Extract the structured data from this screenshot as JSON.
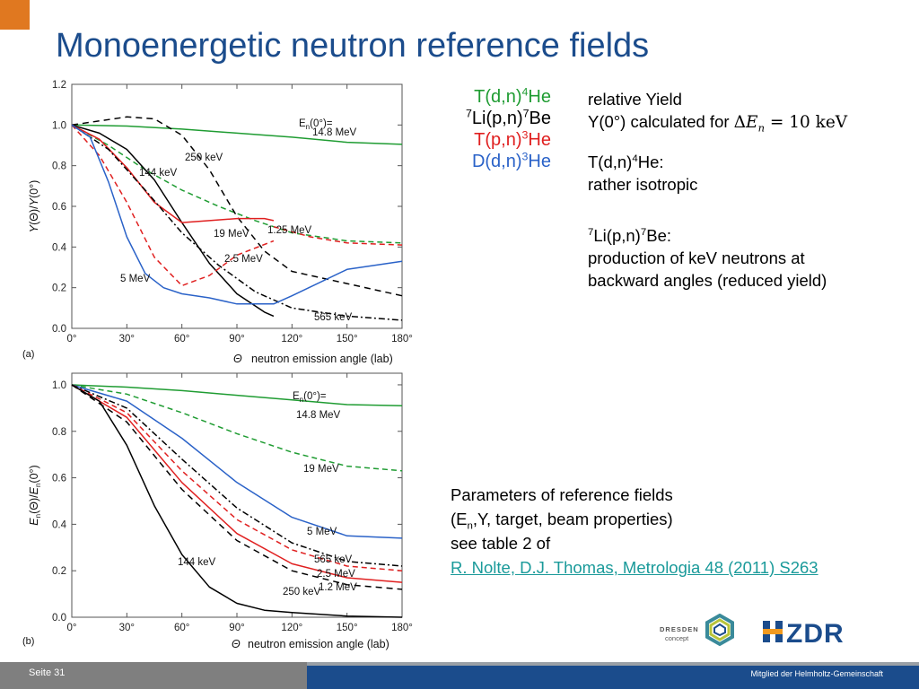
{
  "slide": {
    "title": "Monoenergetic neutron reference fields",
    "page": "Seite 31",
    "footer_right": "Mitglied der Helmholtz-Gemeinschaft"
  },
  "reactions": [
    {
      "label": "T(d,n)⁴He",
      "color": "#1f9c32"
    },
    {
      "label": "⁷Li(p,n)⁷Be",
      "color": "#000000"
    },
    {
      "label": "T(p,n)³He",
      "color": "#e02020"
    },
    {
      "label": "D(d,n)³He",
      "color": "#2a62c8"
    }
  ],
  "info": {
    "yield_line1": "relative Yield",
    "yield_line2": "Y(0°) calculated for",
    "yield_formula": "ΔEn = 10 keV",
    "tdn_title": "T(d,n)⁴He:",
    "tdn_text": "rather isotropic",
    "li_title": "⁷Li(p,n)⁷Be:",
    "li_text1": "production of  keV neutrons  at",
    "li_text2": "backward angles (reduced yield)"
  },
  "params": {
    "line1": "Parameters of reference fields",
    "line2": "(En,Y, target, beam properties)",
    "line3": "see table 2 of",
    "link": "R. Nolte, D.J. Thomas, Metrologia 48 (2011) S263"
  },
  "logos": {
    "dresden_line1": "DRESDEN",
    "dresden_line2": "concept",
    "hzdr": "HZDR"
  },
  "chart_data": [
    {
      "type": "line",
      "panel": "(a)",
      "xlabel": "Θ  neutron emission angle (lab)",
      "ylabel": "Y(Θ)/Y(0°)",
      "x_ticks": [
        "0°",
        "30°",
        "60°",
        "90°",
        "120°",
        "150°",
        "180°"
      ],
      "y_ticks": [
        "0.0",
        "0.2",
        "0.4",
        "0.6",
        "0.8",
        "1.0",
        "1.2"
      ],
      "xlim": [
        0,
        180
      ],
      "ylim": [
        0,
        1.2
      ],
      "annotation": "En(0°)=",
      "series": [
        {
          "name": "14.8 MeV",
          "color": "#1f9c32",
          "dash": "",
          "x": [
            0,
            30,
            60,
            90,
            120,
            150,
            180
          ],
          "y": [
            1.0,
            0.995,
            0.98,
            0.96,
            0.94,
            0.915,
            0.905
          ]
        },
        {
          "name": "19 MeV",
          "color": "#1f9c32",
          "dash": "6,4",
          "x": [
            0,
            20,
            40,
            60,
            80,
            100,
            120,
            150,
            180
          ],
          "y": [
            1.0,
            0.9,
            0.78,
            0.68,
            0.6,
            0.53,
            0.47,
            0.43,
            0.42
          ]
        },
        {
          "name": "250 keV",
          "color": "#000000",
          "dash": "7,5",
          "x": [
            0,
            15,
            30,
            45,
            60,
            75,
            90,
            105,
            120,
            150,
            180
          ],
          "y": [
            1.0,
            1.02,
            1.04,
            1.03,
            0.95,
            0.78,
            0.55,
            0.38,
            0.28,
            0.22,
            0.16
          ]
        },
        {
          "name": "144 keV",
          "color": "#000000",
          "dash": "",
          "x": [
            0,
            15,
            30,
            45,
            60,
            75,
            90,
            105,
            110
          ],
          "y": [
            1.0,
            0.96,
            0.88,
            0.73,
            0.52,
            0.32,
            0.17,
            0.08,
            0.06
          ]
        },
        {
          "name": "1.25 MeV",
          "color": "#e02020",
          "dash": "",
          "x": [
            0,
            15,
            30,
            45,
            60,
            75,
            90,
            105,
            110
          ],
          "y": [
            1.0,
            0.93,
            0.79,
            0.62,
            0.52,
            0.53,
            0.54,
            0.54,
            0.53
          ]
        },
        {
          "name": "1.25 MeV dashed",
          "color": "#e02020",
          "dash": "6,4",
          "x": [
            110,
            130,
            150,
            180
          ],
          "y": [
            0.5,
            0.45,
            0.42,
            0.41
          ]
        },
        {
          "name": "2.5 MeV",
          "color": "#e02020",
          "dash": "6,4",
          "x": [
            0,
            15,
            30,
            45,
            60,
            75,
            90,
            110
          ],
          "y": [
            1.0,
            0.85,
            0.62,
            0.35,
            0.21,
            0.26,
            0.36,
            0.43
          ]
        },
        {
          "name": "565 keV",
          "color": "#000000",
          "dash": "7,3,2,3",
          "x": [
            0,
            20,
            40,
            60,
            80,
            100,
            120,
            150,
            180
          ],
          "y": [
            1.0,
            0.88,
            0.68,
            0.47,
            0.31,
            0.18,
            0.1,
            0.06,
            0.04
          ]
        },
        {
          "name": "5 MeV",
          "color": "#2a62c8",
          "dash": "",
          "x": [
            0,
            10,
            20,
            30,
            40,
            50,
            60,
            75,
            90,
            110,
            120,
            150,
            180
          ],
          "y": [
            1.0,
            0.94,
            0.72,
            0.45,
            0.27,
            0.2,
            0.17,
            0.15,
            0.12,
            0.12,
            0.16,
            0.29,
            0.33
          ]
        }
      ]
    },
    {
      "type": "line",
      "panel": "(b)",
      "xlabel": "Θ  neutron emission angle (lab)",
      "ylabel": "En(Θ)/En(0°)",
      "x_ticks": [
        "0°",
        "30°",
        "60°",
        "90°",
        "120°",
        "150°",
        "180°"
      ],
      "y_ticks": [
        "0.0",
        "0.2",
        "0.4",
        "0.6",
        "0.8",
        "1.0"
      ],
      "xlim": [
        0,
        180
      ],
      "ylim": [
        0,
        1.05
      ],
      "annotation": "En(0°)=",
      "series": [
        {
          "name": "14.8 MeV",
          "color": "#1f9c32",
          "dash": "",
          "x": [
            0,
            30,
            60,
            90,
            120,
            150,
            180
          ],
          "y": [
            1.0,
            0.99,
            0.975,
            0.955,
            0.935,
            0.915,
            0.91
          ]
        },
        {
          "name": "19 MeV",
          "color": "#1f9c32",
          "dash": "6,4",
          "x": [
            0,
            30,
            60,
            90,
            120,
            150,
            180
          ],
          "y": [
            1.0,
            0.96,
            0.88,
            0.79,
            0.71,
            0.65,
            0.63
          ]
        },
        {
          "name": "5 MeV",
          "color": "#2a62c8",
          "dash": "",
          "x": [
            0,
            30,
            60,
            90,
            120,
            150,
            180
          ],
          "y": [
            1.0,
            0.93,
            0.77,
            0.58,
            0.43,
            0.35,
            0.34
          ]
        },
        {
          "name": "565 keV",
          "color": "#000000",
          "dash": "7,3,2,3",
          "x": [
            0,
            30,
            60,
            90,
            120,
            150,
            180
          ],
          "y": [
            1.0,
            0.9,
            0.68,
            0.47,
            0.32,
            0.24,
            0.22
          ]
        },
        {
          "name": "2.5 MeV",
          "color": "#e02020",
          "dash": "6,4",
          "x": [
            0,
            30,
            60,
            90,
            120,
            150,
            180
          ],
          "y": [
            1.0,
            0.88,
            0.63,
            0.42,
            0.29,
            0.22,
            0.2
          ]
        },
        {
          "name": "1.2 MeV",
          "color": "#e02020",
          "dash": "",
          "x": [
            0,
            30,
            60,
            90,
            120,
            150,
            180
          ],
          "y": [
            1.0,
            0.86,
            0.58,
            0.36,
            0.23,
            0.17,
            0.15
          ]
        },
        {
          "name": "250 keV",
          "color": "#000000",
          "dash": "7,5",
          "x": [
            0,
            30,
            60,
            90,
            120,
            150,
            180
          ],
          "y": [
            1.0,
            0.84,
            0.55,
            0.33,
            0.2,
            0.14,
            0.12
          ]
        },
        {
          "name": "144 keV",
          "color": "#000000",
          "dash": "",
          "x": [
            0,
            15,
            30,
            45,
            60,
            75,
            90,
            105,
            120,
            150,
            180
          ],
          "y": [
            1.0,
            0.93,
            0.74,
            0.48,
            0.27,
            0.13,
            0.06,
            0.03,
            0.02,
            0.005,
            0.0
          ]
        }
      ]
    }
  ]
}
